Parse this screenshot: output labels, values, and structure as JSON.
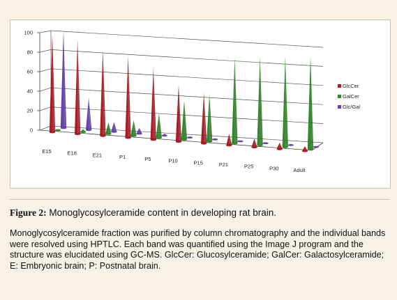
{
  "figure": {
    "label": "Figure 2:",
    "title": " Monoglycosylceramide content in developing rat brain.",
    "body": "Monoglycosylceramide fraction was purified by column chromatography and the individual bands were resolved using HPTLC. Each band was quantified using the Image J program and the structure was elucidated using GC-MS. GlcCer: Glucosylceramide; GalCer: Galactosylceramide; E: Embryonic brain; P: Postnatal brain."
  },
  "chart_data": {
    "type": "bar",
    "style": "3d-cone",
    "categories": [
      "E15",
      "E18",
      "E21",
      "P1",
      "P5",
      "P10",
      "P15",
      "P21",
      "P25",
      "P30",
      "Adult"
    ],
    "series": [
      {
        "name": "GlcCer",
        "color": "#b01822",
        "values": [
          100,
          97,
          88,
          84,
          74,
          58,
          52,
          12,
          9,
          7,
          5
        ]
      },
      {
        "name": "GalCer",
        "color": "#2e8b25",
        "values": [
          0,
          3,
          12,
          16,
          25,
          40,
          48,
          88,
          91,
          93,
          95
        ]
      },
      {
        "name": "Glc/Gal",
        "color": "#6a3fb0",
        "values": [
          100,
          33,
          10,
          6,
          2,
          1,
          1,
          0,
          0,
          0,
          0
        ]
      }
    ],
    "yticks": [
      0,
      20,
      40,
      60,
      80,
      100
    ],
    "ylim": [
      0,
      100
    ],
    "legend_position": "right",
    "grid": true
  }
}
